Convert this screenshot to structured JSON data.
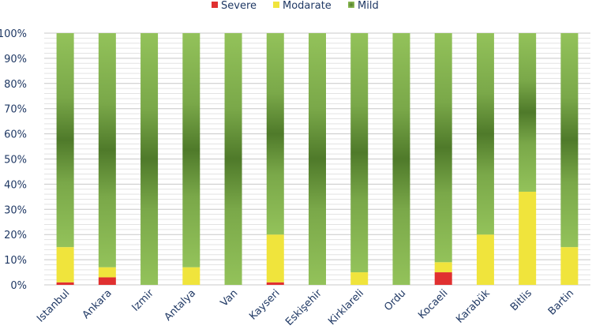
{
  "chart_data": {
    "type": "bar",
    "stacked": true,
    "percent": true,
    "categories": [
      "Istanbul",
      "Ankara",
      "Izmir",
      "Antalya",
      "Van",
      "Kayseri",
      "Eskişehir",
      "Kirklareli",
      "Ordu",
      "Kocaeli",
      "Karabük",
      "Bitlis",
      "Bartin"
    ],
    "series": [
      {
        "name": "Severe",
        "color": "#e03030",
        "values": [
          1,
          3,
          0,
          0,
          0,
          1,
          0,
          0,
          0,
          5,
          0,
          0,
          0
        ]
      },
      {
        "name": "Modarate",
        "color": "#f0e43c",
        "values": [
          14,
          4,
          0,
          7,
          0,
          19,
          0,
          5,
          0,
          4,
          20,
          37,
          15
        ]
      },
      {
        "name": "Mild",
        "color": "#92c05a",
        "values": [
          85,
          93,
          100,
          93,
          100,
          80,
          100,
          95,
          100,
          91,
          80,
          63,
          85
        ]
      }
    ],
    "ylim": [
      0,
      100
    ],
    "yticks": [
      "0%",
      "10%",
      "20%",
      "30%",
      "40%",
      "50%",
      "60%",
      "70%",
      "80%",
      "90%",
      "100%"
    ],
    "grid": true,
    "legend": "top-center"
  }
}
